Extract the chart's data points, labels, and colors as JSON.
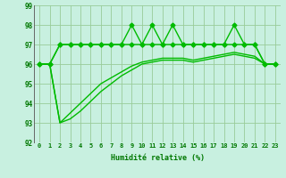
{
  "xlabel": "Humidité relative (%)",
  "x": [
    0,
    1,
    2,
    3,
    4,
    5,
    6,
    7,
    8,
    9,
    10,
    11,
    12,
    13,
    14,
    15,
    16,
    17,
    18,
    19,
    20,
    21,
    22,
    23
  ],
  "line_spiky": [
    96,
    96,
    97,
    97,
    97,
    97,
    97,
    97,
    97,
    98,
    97,
    98,
    97,
    98,
    97,
    97,
    97,
    97,
    97,
    98,
    97,
    97,
    96,
    96
  ],
  "line_flat": [
    96,
    96,
    97,
    97,
    97,
    97,
    97,
    97,
    97,
    97,
    97,
    97,
    97,
    97,
    97,
    97,
    97,
    97,
    97,
    97,
    97,
    97,
    96,
    96
  ],
  "line_smooth": [
    96,
    96,
    93,
    93.5,
    94,
    94.5,
    95,
    95.3,
    95.6,
    95.9,
    96.1,
    96.2,
    96.3,
    96.3,
    96.3,
    96.2,
    96.3,
    96.4,
    96.5,
    96.6,
    96.5,
    96.4,
    96,
    96
  ],
  "line_smooth2": [
    96,
    96,
    93,
    93.2,
    93.6,
    94.1,
    94.6,
    95.0,
    95.4,
    95.7,
    96.0,
    96.1,
    96.2,
    96.2,
    96.2,
    96.1,
    96.2,
    96.3,
    96.4,
    96.5,
    96.4,
    96.3,
    96,
    96
  ],
  "ylim": [
    92,
    99
  ],
  "xlim": [
    -0.5,
    23.5
  ],
  "yticks": [
    92,
    93,
    94,
    95,
    96,
    97,
    98,
    99
  ],
  "xticks": [
    0,
    1,
    2,
    3,
    4,
    5,
    6,
    7,
    8,
    9,
    10,
    11,
    12,
    13,
    14,
    15,
    16,
    17,
    18,
    19,
    20,
    21,
    22,
    23
  ],
  "line_color": "#00BB00",
  "bg_color": "#C8F0E0",
  "grid_color": "#99CC99",
  "marker": "D",
  "marker_size": 2.5,
  "line_width": 1.0
}
